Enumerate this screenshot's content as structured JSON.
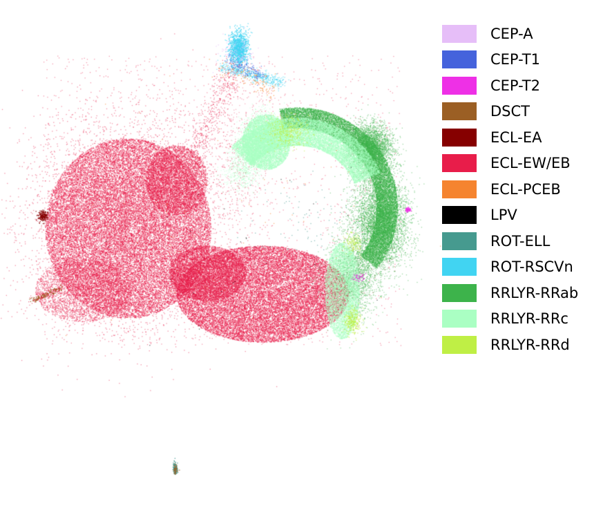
{
  "chart_data": {
    "type": "scatter",
    "title": "",
    "xlabel": "",
    "ylabel": "",
    "axes_visible": false,
    "grid": false,
    "legend_position": "right",
    "marker": "tiny points",
    "series": [
      {
        "name": "CEP-A",
        "color": "#e6bef8",
        "description": "sparse"
      },
      {
        "name": "CEP-T1",
        "color": "#4563dc",
        "description": "sparse, near top spike"
      },
      {
        "name": "CEP-T2",
        "color": "#ee30e6",
        "description": "few points at right edge"
      },
      {
        "name": "DSCT",
        "color": "#9b5f24",
        "description": "small arm at lower-left"
      },
      {
        "name": "ECL-EA",
        "color": "#860000",
        "description": "small cluster at far left"
      },
      {
        "name": "ECL-EW/EB",
        "color": "#e81d4a",
        "description": "dominant: large left and lower-center clouds"
      },
      {
        "name": "ECL-PCEB",
        "color": "#f5842f",
        "description": "sparse"
      },
      {
        "name": "LPV",
        "color": "#000000",
        "description": "very sparse"
      },
      {
        "name": "ROT-ELL",
        "color": "#469a8f",
        "description": "sparse"
      },
      {
        "name": "ROT-RSCVn",
        "color": "#41d4f2",
        "description": "spike at top"
      },
      {
        "name": "RRLYR-RRab",
        "color": "#3db34b",
        "description": "right arc"
      },
      {
        "name": "RRLYR-RRc",
        "color": "#aaffc3",
        "description": "inner right arc"
      },
      {
        "name": "RRLYR-RRd",
        "color": "#bfef45",
        "description": "specks within the arc"
      }
    ]
  }
}
